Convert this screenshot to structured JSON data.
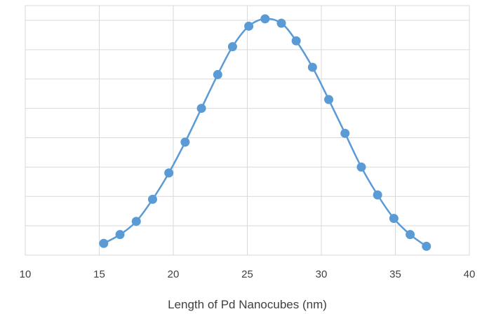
{
  "chart_data": {
    "type": "line",
    "title": "",
    "xlabel": "Length of Pd Nanocubes (nm)",
    "ylabel": "",
    "xlim": [
      10,
      40
    ],
    "ylim": [
      0,
      8.5
    ],
    "x_ticks": [
      10,
      15,
      20,
      25,
      30,
      35,
      40
    ],
    "x_tick_labels": [
      "10",
      "15",
      "20",
      "25",
      "30",
      "35",
      "40"
    ],
    "y_gridlines": [
      1,
      2,
      3,
      4,
      5,
      6,
      7,
      8
    ],
    "y_tick_labels_shown": false,
    "grid": true,
    "marker": "circle",
    "smooth": true,
    "color": "#5b9bd5",
    "series": [
      {
        "points": [
          [
            15.3,
            0.4
          ],
          [
            16.4,
            0.7
          ],
          [
            17.5,
            1.15
          ],
          [
            18.6,
            1.9
          ],
          [
            19.7,
            2.8
          ],
          [
            20.8,
            3.85
          ],
          [
            21.9,
            5.0
          ],
          [
            23.0,
            6.15
          ],
          [
            24.0,
            7.1
          ],
          [
            25.1,
            7.8
          ],
          [
            26.2,
            8.05
          ],
          [
            27.3,
            7.9
          ],
          [
            28.3,
            7.3
          ],
          [
            29.4,
            6.4
          ],
          [
            30.5,
            5.3
          ],
          [
            31.6,
            4.15
          ],
          [
            32.7,
            3.0
          ],
          [
            33.8,
            2.05
          ],
          [
            34.9,
            1.25
          ],
          [
            36.0,
            0.7
          ],
          [
            37.1,
            0.3
          ]
        ]
      }
    ]
  }
}
